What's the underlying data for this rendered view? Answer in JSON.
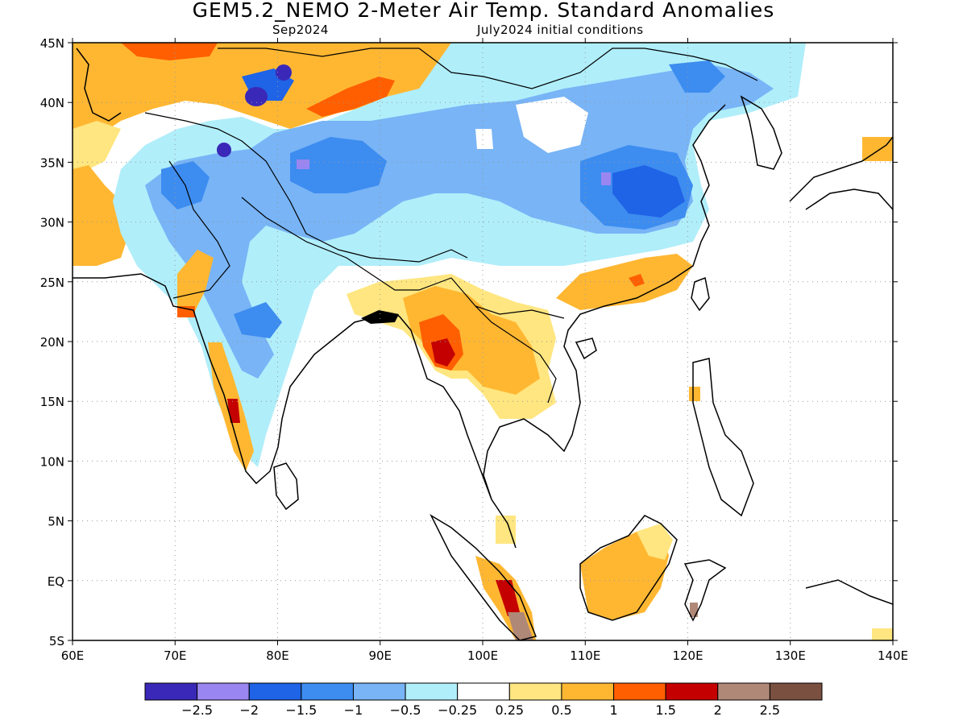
{
  "title": "GEM5.2_NEMO 2-Meter Air Temp. Standard Anomalies",
  "subtitle_left": "Sep2024",
  "subtitle_right": "July2024 initial conditions",
  "map": {
    "lon_range": [
      60,
      140
    ],
    "lat_range": [
      -5,
      45
    ],
    "x_ticks": [
      {
        "value": 60,
        "label": "60E"
      },
      {
        "value": 70,
        "label": "70E"
      },
      {
        "value": 80,
        "label": "80E"
      },
      {
        "value": 90,
        "label": "90E"
      },
      {
        "value": 100,
        "label": "100E"
      },
      {
        "value": 110,
        "label": "110E"
      },
      {
        "value": 120,
        "label": "120E"
      },
      {
        "value": 130,
        "label": "130E"
      },
      {
        "value": 140,
        "label": "140E"
      }
    ],
    "y_ticks": [
      {
        "value": 45,
        "label": "45N"
      },
      {
        "value": 40,
        "label": "40N"
      },
      {
        "value": 35,
        "label": "35N"
      },
      {
        "value": 30,
        "label": "30N"
      },
      {
        "value": 25,
        "label": "25N"
      },
      {
        "value": 20,
        "label": "20N"
      },
      {
        "value": 15,
        "label": "15N"
      },
      {
        "value": 10,
        "label": "10N"
      },
      {
        "value": 5,
        "label": "5N"
      },
      {
        "value": 0,
        "label": "EQ"
      },
      {
        "value": -5,
        "label": "5S"
      }
    ],
    "grid": "dotted"
  },
  "colorbar": {
    "colors": [
      "#3a28b8",
      "#9a86f0",
      "#1f63e6",
      "#3d8cf0",
      "#78b4f6",
      "#b0eefa",
      "#ffffff",
      "#ffe680",
      "#ffb732",
      "#ff5f00",
      "#c40000",
      "#b08878",
      "#7a5040"
    ],
    "labels": [
      "-2.5",
      "-2",
      "-1.5",
      "-1",
      "-0.5",
      "-0.25",
      "0.25",
      "0.5",
      "1",
      "1.5",
      "2",
      "2.5"
    ]
  }
}
